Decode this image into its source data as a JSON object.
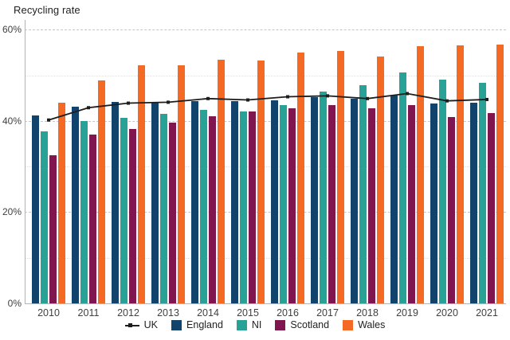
{
  "title": "Recycling rate",
  "colors": {
    "uk_line": "#1d1d1b",
    "england": "#12436D",
    "ni": "#28A197",
    "scotland": "#801650",
    "wales": "#F46A25",
    "grid_major": "#c6c6c6",
    "grid_minor": "#dfdfdf",
    "axis": "#b3b3b3",
    "tick_text": "#414042"
  },
  "legend": [
    {
      "label": "UK",
      "type": "line-with-square-marker",
      "color": "#1d1d1b"
    },
    {
      "label": "England",
      "type": "square",
      "color": "#12436D"
    },
    {
      "label": "NI",
      "type": "square",
      "color": "#28A197"
    },
    {
      "label": "Scotland",
      "type": "square",
      "color": "#801650"
    },
    {
      "label": "Wales",
      "type": "square",
      "color": "#F46A25"
    }
  ],
  "chart_data": {
    "type": "bar",
    "title": "Recycling rate",
    "categories": [
      "2010",
      "2011",
      "2012",
      "2013",
      "2014",
      "2015",
      "2016",
      "2017",
      "2018",
      "2019",
      "2020",
      "2021"
    ],
    "series": [
      {
        "name": "England",
        "color": "#12436D",
        "values": [
          41.2,
          43.2,
          44.2,
          44.0,
          44.4,
          44.3,
          44.6,
          45.2,
          44.8,
          45.6,
          43.9,
          44.0
        ]
      },
      {
        "name": "NI",
        "color": "#28A197",
        "values": [
          37.7,
          40.0,
          40.7,
          41.6,
          42.5,
          42.1,
          43.4,
          46.4,
          47.8,
          50.6,
          49.1,
          48.4
        ]
      },
      {
        "name": "Scotland",
        "color": "#801650",
        "values": [
          32.5,
          37.0,
          38.2,
          39.6,
          41.0,
          42.0,
          42.8,
          43.5,
          42.8,
          43.5,
          40.8,
          41.7
        ]
      },
      {
        "name": "Wales",
        "color": "#F46A25",
        "values": [
          44.0,
          48.9,
          52.2,
          52.2,
          53.4,
          53.3,
          55.0,
          55.4,
          54.1,
          56.4,
          56.5,
          56.8
        ]
      }
    ],
    "line_series": {
      "name": "UK",
      "color": "#1d1d1b",
      "values": [
        40.2,
        42.9,
        43.9,
        44.1,
        44.9,
        44.6,
        45.3,
        45.5,
        44.9,
        46.0,
        44.4,
        44.7
      ]
    },
    "xlabel": "",
    "ylabel": "Recycling rate",
    "ylim": [
      0,
      62.15
    ],
    "yticks_major": [
      0,
      20,
      40,
      60
    ],
    "yticks_minor": [
      10,
      30,
      50
    ],
    "ytick_format": "percent",
    "grid": "horizontal",
    "legend_position": "bottom"
  }
}
